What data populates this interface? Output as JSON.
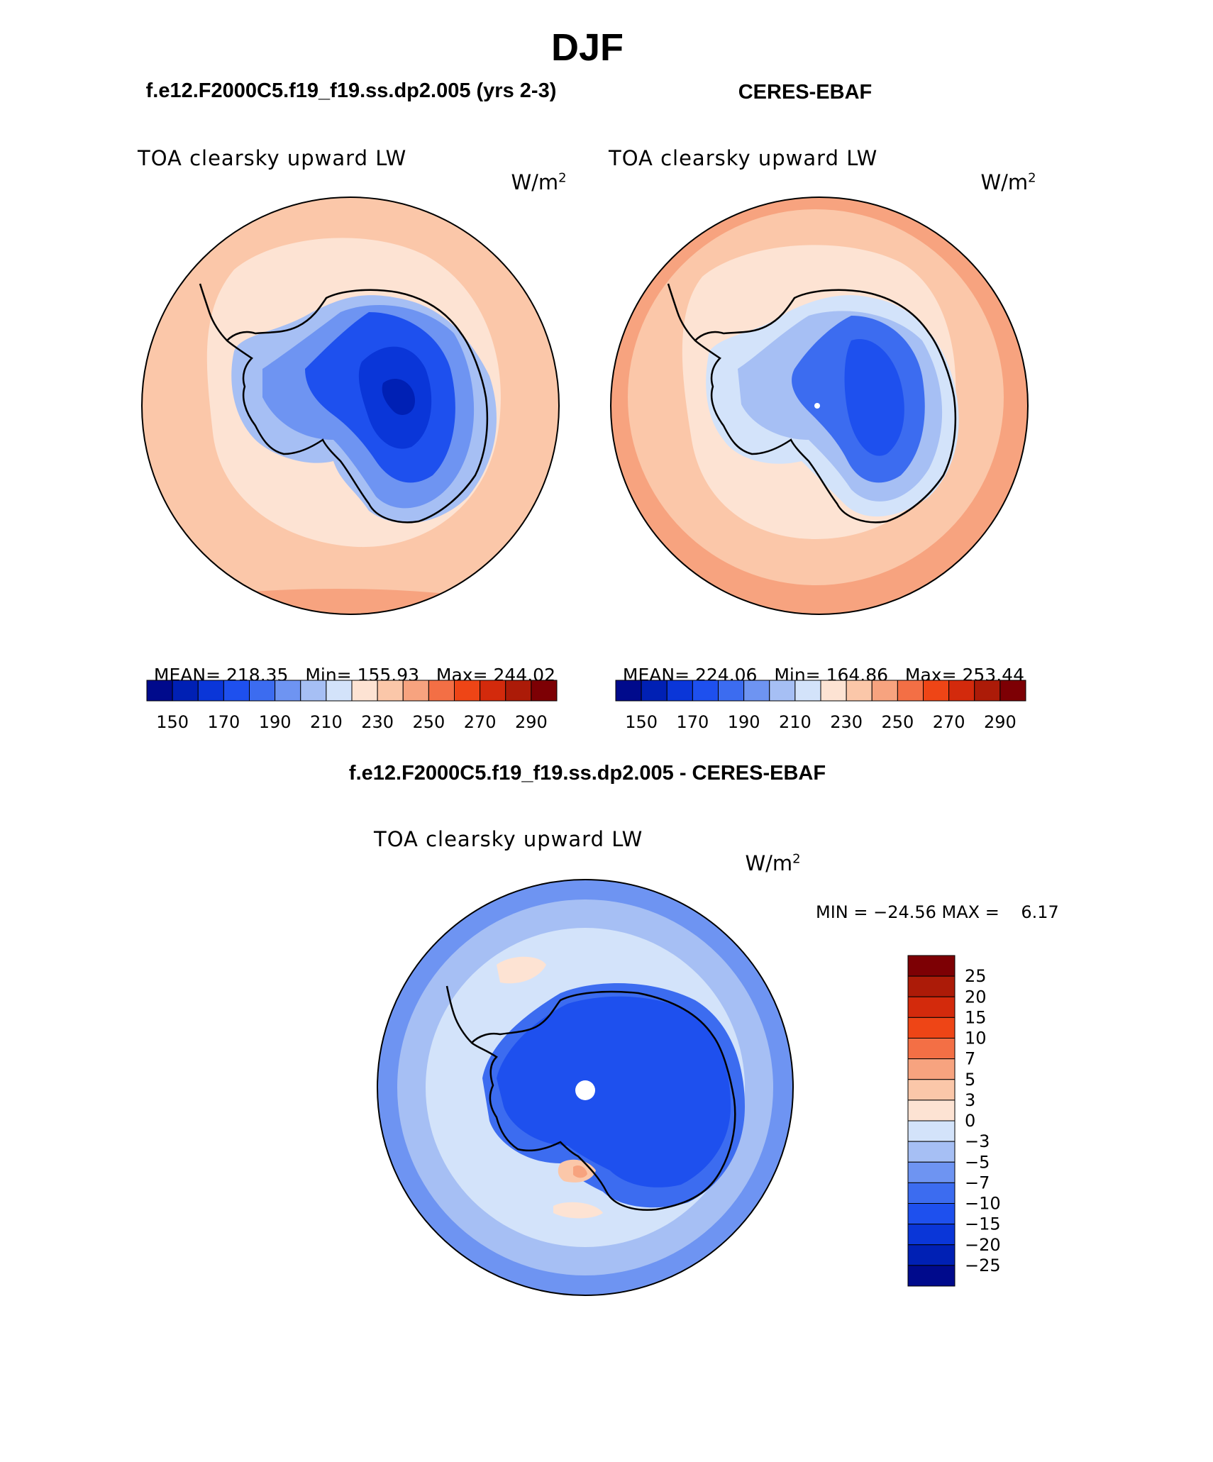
{
  "season": "DJF",
  "panels": [
    {
      "heading": "f.e12.F2000C5.f19_f19.ss.dp2.005 (yrs 2-3)",
      "variable": "TOA clearsky upward LW",
      "units_base": "W/m",
      "units_exp": "2",
      "stats": {
        "mean_label": "MEAN=",
        "mean": "218.35",
        "min_label": "Min=",
        "min": "155.93",
        "max_label": "Max=",
        "max": "244.02"
      },
      "colorbar": {
        "ticks": [
          "150",
          "170",
          "190",
          "210",
          "230",
          "250",
          "270",
          "290"
        ],
        "colors": [
          "#000a8c",
          "#0020b4",
          "#0a36d8",
          "#1e50ee",
          "#3c6cf0",
          "#6e94f2",
          "#a6bff4",
          "#d3e3fa",
          "#fde3d3",
          "#fbc7a9",
          "#f7a37f",
          "#f36f45",
          "#ee4516",
          "#d32a0c",
          "#ac1b08",
          "#7d0004"
        ]
      }
    },
    {
      "heading": "CERES-EBAF",
      "variable": "TOA clearsky upward LW",
      "units_base": "W/m",
      "units_exp": "2",
      "stats": {
        "mean_label": "MEAN=",
        "mean": "224.06",
        "min_label": "Min=",
        "min": "164.86",
        "max_label": "Max=",
        "max": "253.44"
      },
      "colorbar": {
        "ticks": [
          "150",
          "170",
          "190",
          "210",
          "230",
          "250",
          "270",
          "290"
        ],
        "colors": [
          "#000a8c",
          "#0020b4",
          "#0a36d8",
          "#1e50ee",
          "#3c6cf0",
          "#6e94f2",
          "#a6bff4",
          "#d3e3fa",
          "#fde3d3",
          "#fbc7a9",
          "#f7a37f",
          "#f36f45",
          "#ee4516",
          "#d32a0c",
          "#ac1b08",
          "#7d0004"
        ]
      }
    }
  ],
  "difference": {
    "heading": "f.e12.F2000C5.f19_f19.ss.dp2.005 - CERES-EBAF",
    "variable": "TOA clearsky upward LW",
    "units_base": "W/m",
    "units_exp": "2",
    "minmax": "MIN = −24.56 MAX =    6.17",
    "colorbar": {
      "labels": [
        "25",
        "20",
        "15",
        "10",
        "7",
        "5",
        "3",
        "0",
        "−3",
        "−5",
        "−7",
        "−10",
        "−15",
        "−20",
        "−25"
      ],
      "colors": [
        "#7d0004",
        "#ac1b08",
        "#d32a0c",
        "#ee4516",
        "#f36f45",
        "#f7a37f",
        "#fbc7a9",
        "#fde3d3",
        "#d3e3fa",
        "#a6bff4",
        "#6e94f2",
        "#3c6cf0",
        "#1e50ee",
        "#0a36d8",
        "#0020b4",
        "#000a8c"
      ]
    }
  }
}
